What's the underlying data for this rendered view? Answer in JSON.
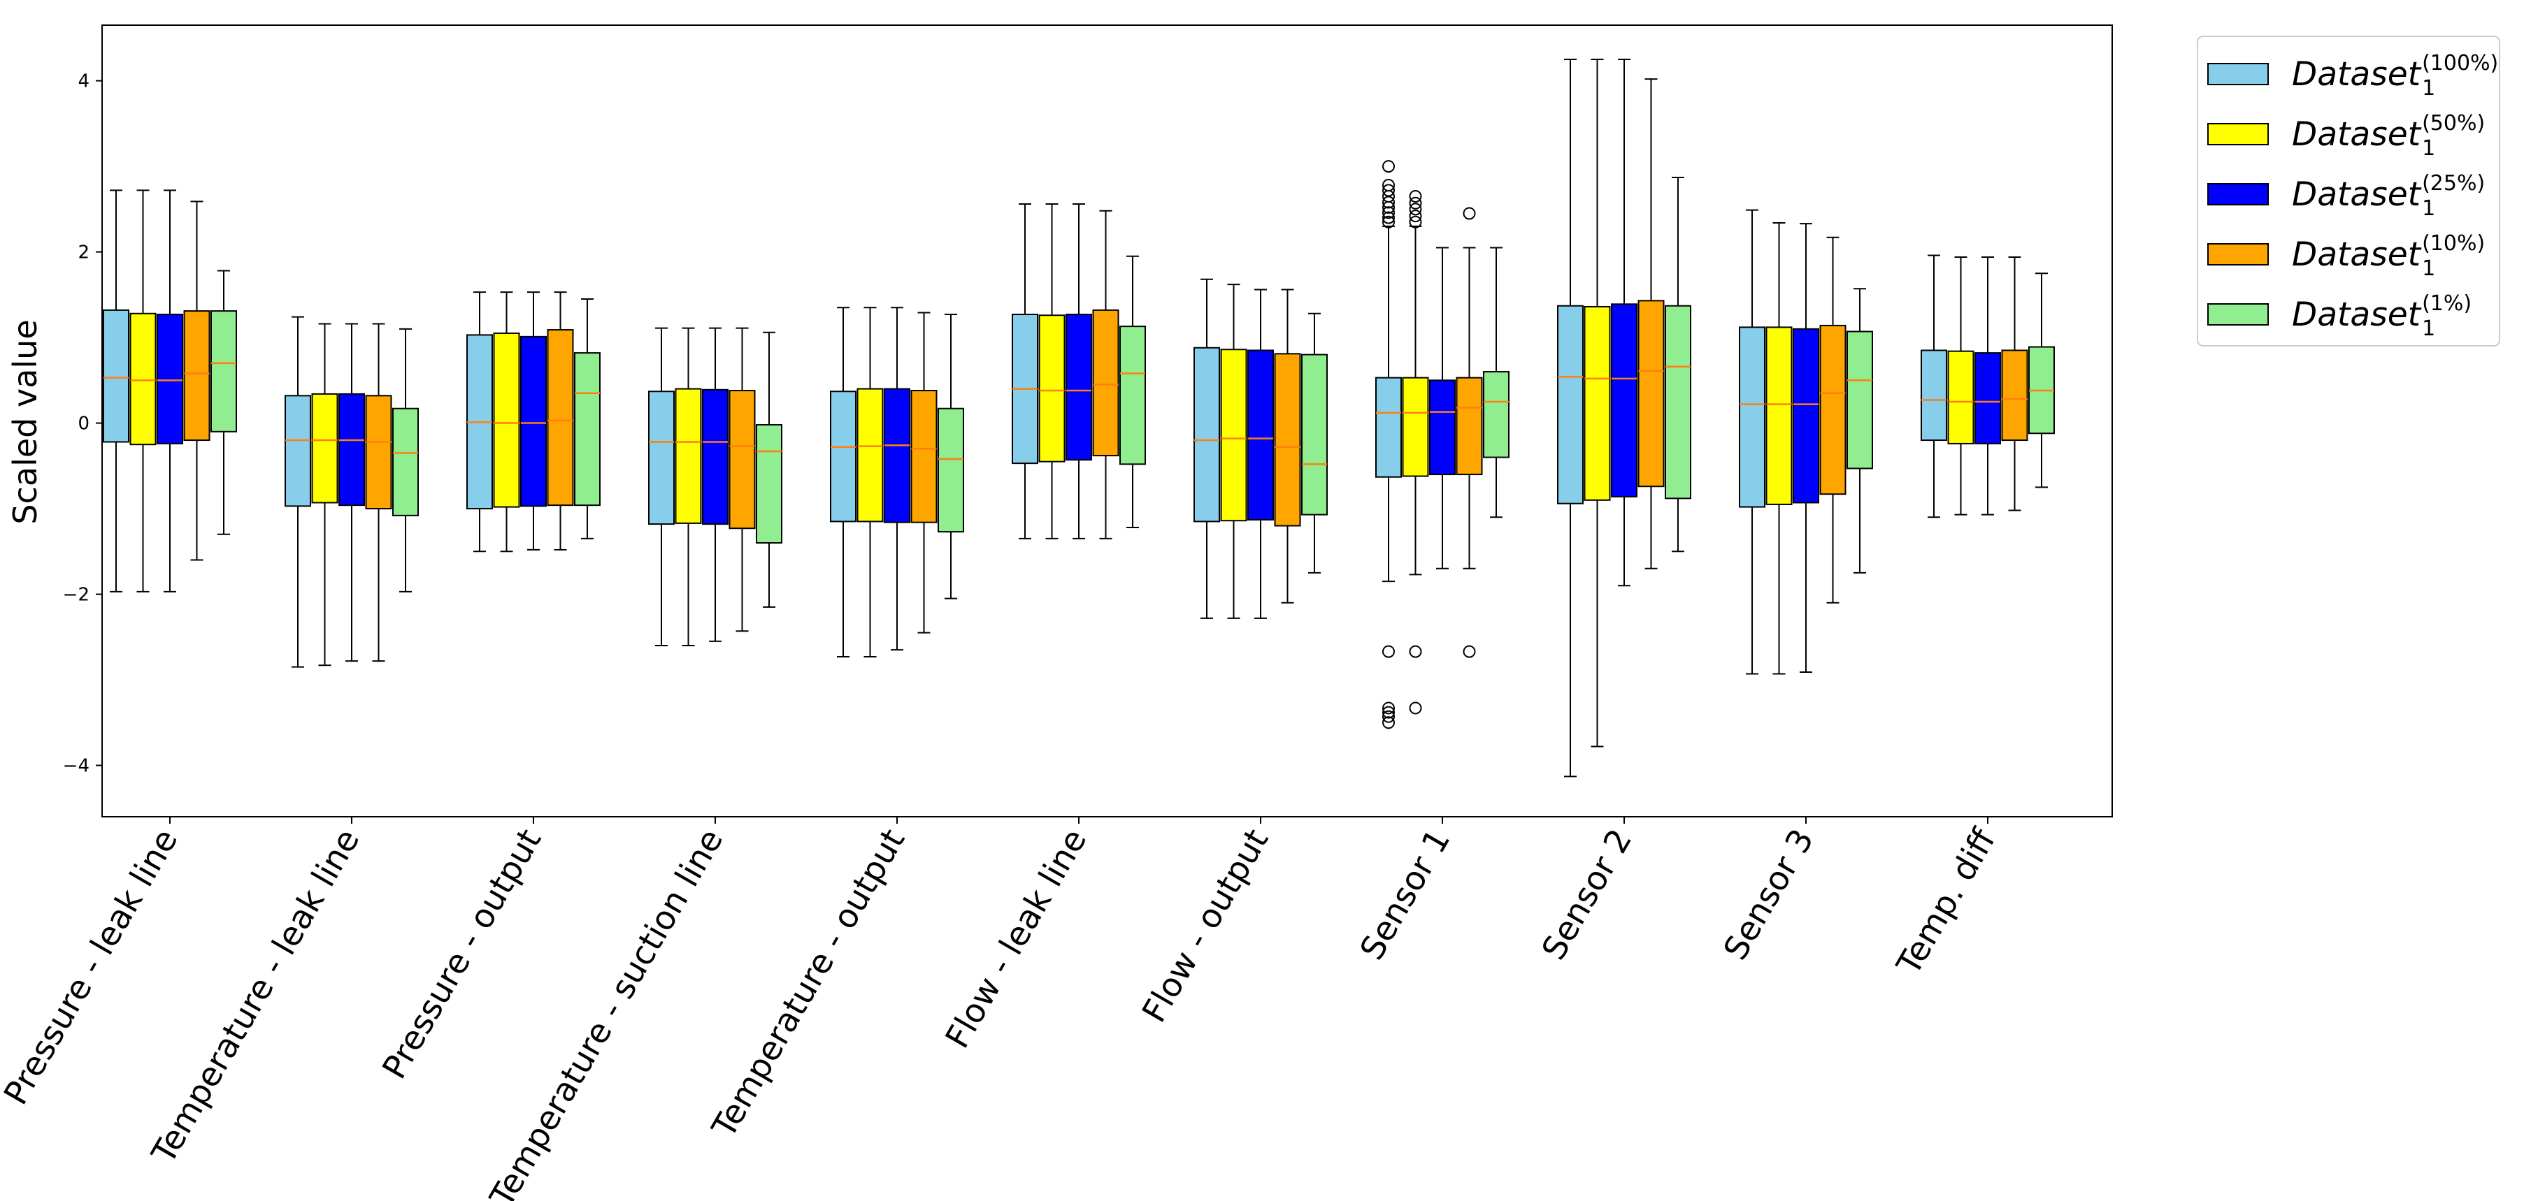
{
  "chart_data": {
    "type": "boxplot",
    "title": "",
    "xlabel": "",
    "ylabel": "Scaled value",
    "ylim": [
      -4.6,
      4.65
    ],
    "yticks": [
      -4,
      -2,
      0,
      2,
      4
    ],
    "grid": false,
    "legend_position": "outside-top-right",
    "categories": [
      "Pressure - leak line",
      "Temperature - leak line",
      "Pressure - output",
      "Temperature - suction line",
      "Temperature - output",
      "Flow - leak line",
      "Flow - output",
      "Sensor 1",
      "Sensor 2",
      "Sensor 3",
      "Temp. diff"
    ],
    "series": [
      {
        "name": "Dataset",
        "subscript": "1",
        "superscript": "(100%)",
        "color": "#87CEEB",
        "boxes": [
          {
            "whislo": -1.97,
            "q1": -0.22,
            "med": 0.53,
            "q3": 1.32,
            "whishi": 2.72,
            "fliers": []
          },
          {
            "whislo": -2.85,
            "q1": -0.97,
            "med": -0.2,
            "q3": 0.32,
            "whishi": 1.24,
            "fliers": []
          },
          {
            "whislo": -1.5,
            "q1": -1.0,
            "med": 0.01,
            "q3": 1.03,
            "whishi": 1.53,
            "fliers": []
          },
          {
            "whislo": -2.6,
            "q1": -1.18,
            "med": -0.22,
            "q3": 0.37,
            "whishi": 1.11,
            "fliers": []
          },
          {
            "whislo": -2.73,
            "q1": -1.15,
            "med": -0.28,
            "q3": 0.37,
            "whishi": 1.35,
            "fliers": []
          },
          {
            "whislo": -1.35,
            "q1": -0.47,
            "med": 0.4,
            "q3": 1.27,
            "whishi": 2.56,
            "fliers": []
          },
          {
            "whislo": -2.28,
            "q1": -1.15,
            "med": -0.2,
            "q3": 0.88,
            "whishi": 1.68,
            "fliers": []
          },
          {
            "whislo": -1.85,
            "q1": -0.63,
            "med": 0.12,
            "q3": 0.53,
            "whishi": 2.3,
            "fliers": [
              2.35,
              2.4,
              2.46,
              2.52,
              2.58,
              2.65,
              2.72,
              2.78,
              3.0,
              -2.67,
              -3.33,
              -3.38,
              -3.43,
              -3.5
            ]
          },
          {
            "whislo": -4.13,
            "q1": -0.94,
            "med": 0.54,
            "q3": 1.37,
            "whishi": 4.25,
            "fliers": []
          },
          {
            "whislo": -2.93,
            "q1": -0.98,
            "med": 0.22,
            "q3": 1.12,
            "whishi": 2.49,
            "fliers": []
          },
          {
            "whislo": -1.1,
            "q1": -0.2,
            "med": 0.27,
            "q3": 0.85,
            "whishi": 1.96,
            "fliers": []
          }
        ]
      },
      {
        "name": "Dataset",
        "subscript": "1",
        "superscript": "(50%)",
        "color": "#FFFF00",
        "boxes": [
          {
            "whislo": -1.97,
            "q1": -0.25,
            "med": 0.5,
            "q3": 1.28,
            "whishi": 2.72,
            "fliers": []
          },
          {
            "whislo": -2.83,
            "q1": -0.93,
            "med": -0.2,
            "q3": 0.34,
            "whishi": 1.16,
            "fliers": []
          },
          {
            "whislo": -1.5,
            "q1": -0.98,
            "med": 0.0,
            "q3": 1.05,
            "whishi": 1.53,
            "fliers": []
          },
          {
            "whislo": -2.6,
            "q1": -1.17,
            "med": -0.22,
            "q3": 0.4,
            "whishi": 1.11,
            "fliers": []
          },
          {
            "whislo": -2.73,
            "q1": -1.15,
            "med": -0.27,
            "q3": 0.4,
            "whishi": 1.35,
            "fliers": []
          },
          {
            "whislo": -1.35,
            "q1": -0.45,
            "med": 0.38,
            "q3": 1.26,
            "whishi": 2.56,
            "fliers": []
          },
          {
            "whislo": -2.28,
            "q1": -1.14,
            "med": -0.18,
            "q3": 0.86,
            "whishi": 1.62,
            "fliers": []
          },
          {
            "whislo": -1.77,
            "q1": -0.62,
            "med": 0.12,
            "q3": 0.53,
            "whishi": 2.3,
            "fliers": [
              2.35,
              2.42,
              2.5,
              2.57,
              2.65,
              -2.67,
              -3.33
            ]
          },
          {
            "whislo": -3.78,
            "q1": -0.9,
            "med": 0.52,
            "q3": 1.36,
            "whishi": 4.25,
            "fliers": []
          },
          {
            "whislo": -2.93,
            "q1": -0.95,
            "med": 0.22,
            "q3": 1.12,
            "whishi": 2.34,
            "fliers": []
          },
          {
            "whislo": -1.07,
            "q1": -0.24,
            "med": 0.25,
            "q3": 0.84,
            "whishi": 1.94,
            "fliers": []
          }
        ]
      },
      {
        "name": "Dataset",
        "subscript": "1",
        "superscript": "(25%)",
        "color": "#0000FF",
        "boxes": [
          {
            "whislo": -1.97,
            "q1": -0.24,
            "med": 0.5,
            "q3": 1.27,
            "whishi": 2.72,
            "fliers": []
          },
          {
            "whislo": -2.78,
            "q1": -0.96,
            "med": -0.2,
            "q3": 0.34,
            "whishi": 1.16,
            "fliers": []
          },
          {
            "whislo": -1.48,
            "q1": -0.97,
            "med": 0.0,
            "q3": 1.01,
            "whishi": 1.53,
            "fliers": []
          },
          {
            "whislo": -2.55,
            "q1": -1.18,
            "med": -0.22,
            "q3": 0.39,
            "whishi": 1.11,
            "fliers": []
          },
          {
            "whislo": -2.65,
            "q1": -1.16,
            "med": -0.26,
            "q3": 0.4,
            "whishi": 1.35,
            "fliers": []
          },
          {
            "whislo": -1.35,
            "q1": -0.43,
            "med": 0.38,
            "q3": 1.27,
            "whishi": 2.56,
            "fliers": []
          },
          {
            "whislo": -2.28,
            "q1": -1.13,
            "med": -0.18,
            "q3": 0.85,
            "whishi": 1.56,
            "fliers": []
          },
          {
            "whislo": -1.7,
            "q1": -0.6,
            "med": 0.13,
            "q3": 0.5,
            "whishi": 2.05,
            "fliers": []
          },
          {
            "whislo": -1.9,
            "q1": -0.86,
            "med": 0.52,
            "q3": 1.39,
            "whishi": 4.25,
            "fliers": []
          },
          {
            "whislo": -2.91,
            "q1": -0.93,
            "med": 0.22,
            "q3": 1.1,
            "whishi": 2.33,
            "fliers": []
          },
          {
            "whislo": -1.07,
            "q1": -0.24,
            "med": 0.25,
            "q3": 0.82,
            "whishi": 1.94,
            "fliers": []
          }
        ]
      },
      {
        "name": "Dataset",
        "subscript": "1",
        "superscript": "(10%)",
        "color": "#FFA500",
        "boxes": [
          {
            "whislo": -1.6,
            "q1": -0.2,
            "med": 0.58,
            "q3": 1.31,
            "whishi": 2.59,
            "fliers": []
          },
          {
            "whislo": -2.78,
            "q1": -1.0,
            "med": -0.22,
            "q3": 0.32,
            "whishi": 1.16,
            "fliers": []
          },
          {
            "whislo": -1.48,
            "q1": -0.96,
            "med": 0.03,
            "q3": 1.09,
            "whishi": 1.53,
            "fliers": []
          },
          {
            "whislo": -2.43,
            "q1": -1.23,
            "med": -0.27,
            "q3": 0.38,
            "whishi": 1.11,
            "fliers": []
          },
          {
            "whislo": -2.45,
            "q1": -1.16,
            "med": -0.3,
            "q3": 0.38,
            "whishi": 1.29,
            "fliers": []
          },
          {
            "whislo": -1.35,
            "q1": -0.38,
            "med": 0.45,
            "q3": 1.32,
            "whishi": 2.48,
            "fliers": []
          },
          {
            "whislo": -2.1,
            "q1": -1.2,
            "med": -0.28,
            "q3": 0.81,
            "whishi": 1.56,
            "fliers": []
          },
          {
            "whislo": -1.7,
            "q1": -0.6,
            "med": 0.18,
            "q3": 0.53,
            "whishi": 2.05,
            "fliers": [
              2.45,
              -2.67
            ]
          },
          {
            "whislo": -1.7,
            "q1": -0.74,
            "med": 0.61,
            "q3": 1.43,
            "whishi": 4.02,
            "fliers": []
          },
          {
            "whislo": -2.1,
            "q1": -0.83,
            "med": 0.35,
            "q3": 1.14,
            "whishi": 2.17,
            "fliers": []
          },
          {
            "whislo": -1.02,
            "q1": -0.2,
            "med": 0.28,
            "q3": 0.85,
            "whishi": 1.94,
            "fliers": []
          }
        ]
      },
      {
        "name": "Dataset",
        "subscript": "1",
        "superscript": "(1%)",
        "color": "#90EE90",
        "boxes": [
          {
            "whislo": -1.3,
            "q1": -0.1,
            "med": 0.7,
            "q3": 1.31,
            "whishi": 1.78,
            "fliers": []
          },
          {
            "whislo": -1.97,
            "q1": -1.08,
            "med": -0.35,
            "q3": 0.17,
            "whishi": 1.1,
            "fliers": []
          },
          {
            "whislo": -1.35,
            "q1": -0.96,
            "med": 0.35,
            "q3": 0.82,
            "whishi": 1.45,
            "fliers": []
          },
          {
            "whislo": -2.15,
            "q1": -1.4,
            "med": -0.33,
            "q3": -0.02,
            "whishi": 1.06,
            "fliers": []
          },
          {
            "whislo": -2.05,
            "q1": -1.27,
            "med": -0.42,
            "q3": 0.17,
            "whishi": 1.27,
            "fliers": []
          },
          {
            "whislo": -1.22,
            "q1": -0.48,
            "med": 0.58,
            "q3": 1.13,
            "whishi": 1.95,
            "fliers": []
          },
          {
            "whislo": -1.75,
            "q1": -1.07,
            "med": -0.48,
            "q3": 0.8,
            "whishi": 1.28,
            "fliers": []
          },
          {
            "whislo": -1.1,
            "q1": -0.4,
            "med": 0.25,
            "q3": 0.6,
            "whishi": 2.05,
            "fliers": []
          },
          {
            "whislo": -1.5,
            "q1": -0.88,
            "med": 0.66,
            "q3": 1.37,
            "whishi": 2.87,
            "fliers": []
          },
          {
            "whislo": -1.75,
            "q1": -0.53,
            "med": 0.5,
            "q3": 1.07,
            "whishi": 1.57,
            "fliers": []
          },
          {
            "whislo": -0.75,
            "q1": -0.12,
            "med": 0.38,
            "q3": 0.89,
            "whishi": 1.75,
            "fliers": []
          }
        ]
      }
    ]
  },
  "colors": {
    "median": "#FF7F0E",
    "edge": "#000000"
  }
}
